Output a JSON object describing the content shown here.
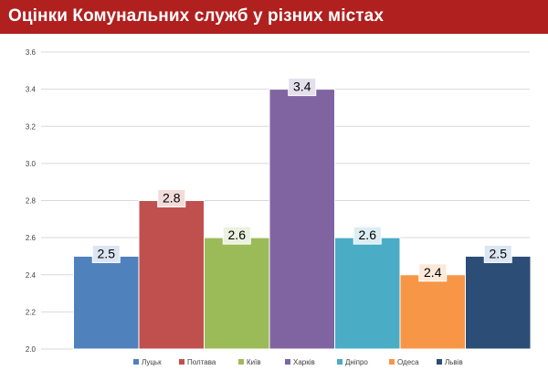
{
  "header": {
    "title": "Оцінки Комунальних служб у різних містах"
  },
  "chart_data": {
    "type": "bar",
    "title": "Оцінки Комунальних служб у різних містах",
    "xlabel": "",
    "ylabel": "",
    "categories": [
      "Луцьк",
      "Полтава",
      "Київ",
      "Харків",
      "Дніпро",
      "Одеса",
      "Львів"
    ],
    "values": [
      2.5,
      2.8,
      2.6,
      3.4,
      2.6,
      2.4,
      2.5
    ],
    "value_labels": [
      "2.5",
      "2.8",
      "2.6",
      "3.4",
      "2.6",
      "2.4",
      "2.5"
    ],
    "colors": [
      "#4f81bd",
      "#c0504d",
      "#9bbb59",
      "#8064a2",
      "#4bacc6",
      "#f79646",
      "#2c4d75"
    ],
    "label_backgrounds": [
      "#dce6f2",
      "#f2dcdb",
      "#ebf1de",
      "#e4dfec",
      "#dbeef4",
      "#fde9d9",
      "#dce6f2"
    ],
    "ylim": [
      2.0,
      3.6
    ],
    "yticks": [
      "2.0",
      "2.2",
      "2.4",
      "2.6",
      "2.8",
      "3.0",
      "3.2",
      "3.4",
      "3.6"
    ],
    "grid": true,
    "legend_position": "bottom",
    "legend": [
      "Луцьк",
      "Полтава",
      "Київ",
      "Харків",
      "Дніпро",
      "Одеса",
      "Львів"
    ]
  }
}
